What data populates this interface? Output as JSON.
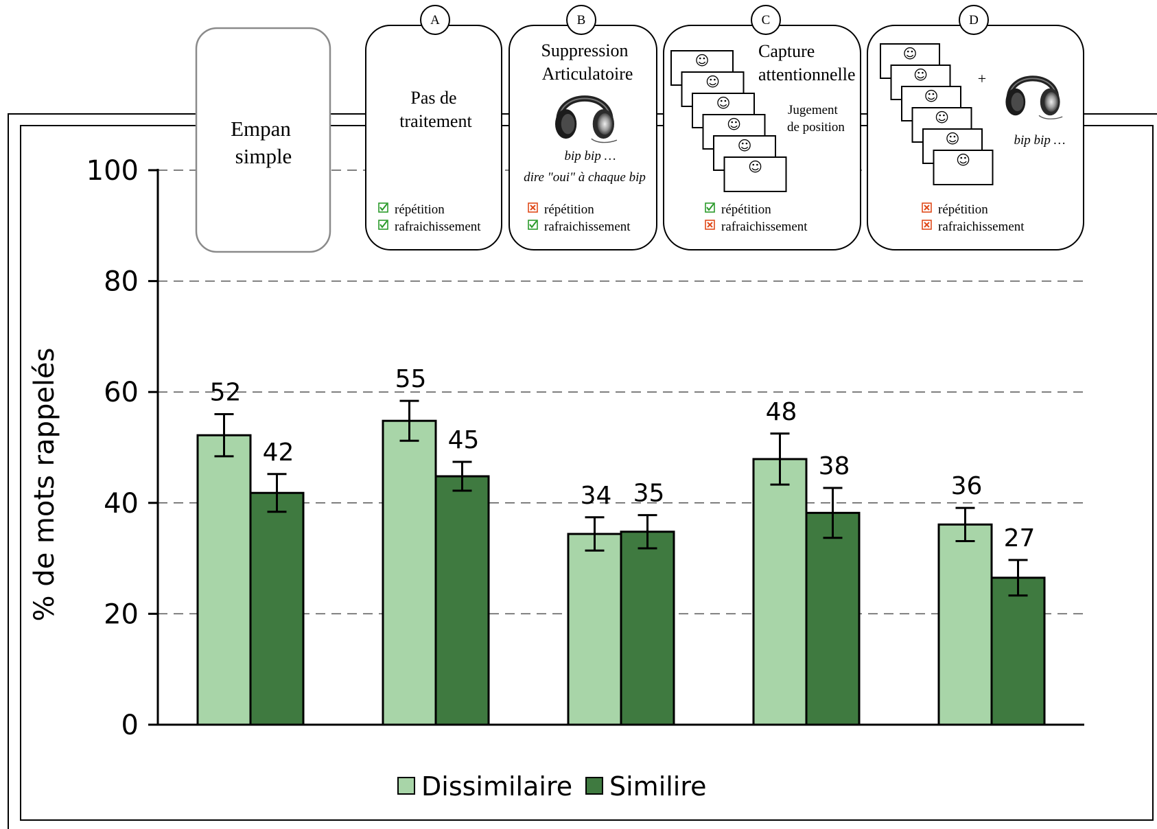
{
  "chart_data": {
    "type": "bar",
    "ylabel": "% de mots rappelés",
    "ylim": [
      0,
      100
    ],
    "yticks": [
      0,
      20,
      40,
      60,
      80,
      100
    ],
    "grid": true,
    "legend_position": "bottom-center",
    "categories": [
      "Empan simple",
      "Pas de traitement",
      "Suppression Articulatoire",
      "Capture attentionnelle",
      "D"
    ],
    "series": [
      {
        "name": "Dissimilaire",
        "color": "#a8d5a8",
        "values": [
          52.2,
          54.8,
          34.4,
          47.9,
          36.1
        ],
        "labels": [
          "52",
          "55",
          "34",
          "48",
          "36"
        ],
        "error": [
          3.8,
          3.6,
          3.0,
          4.6,
          3.0
        ]
      },
      {
        "name": "Similire",
        "color": "#3f7a40",
        "values": [
          41.8,
          44.8,
          34.8,
          38.2,
          26.5
        ],
        "labels": [
          "42",
          "45",
          "35",
          "38",
          "27"
        ],
        "error": [
          3.4,
          2.6,
          3.0,
          4.5,
          3.2
        ]
      }
    ]
  },
  "panels": {
    "empan": {
      "line1": "Empan",
      "line2": "simple"
    },
    "A": {
      "letter": "A",
      "line1": "Pas de",
      "line2": "traitement",
      "rep": "répétition",
      "rep_ok": true,
      "raf": "rafraichissement",
      "raf_ok": true
    },
    "B": {
      "letter": "B",
      "line1": "Suppression",
      "line2": "Articulatoire",
      "note1": "bip bip …",
      "note2": "dire \"oui\" à chaque bip",
      "rep": "répétition",
      "rep_ok": false,
      "raf": "rafraichissement",
      "raf_ok": true
    },
    "C": {
      "letter": "C",
      "line1": "Capture",
      "line2": "attentionnelle",
      "note1": "Jugement",
      "note2": "de position",
      "rep": "répétition",
      "rep_ok": true,
      "raf": "rafraichissement",
      "raf_ok": false
    },
    "D": {
      "letter": "D",
      "plus": "+",
      "note1": "bip bip …",
      "rep": "répétition",
      "rep_ok": false,
      "raf": "rafraichissement",
      "raf_ok": false
    }
  },
  "icons": {
    "smiley": "☺",
    "check": "✓",
    "cross": "✕"
  }
}
